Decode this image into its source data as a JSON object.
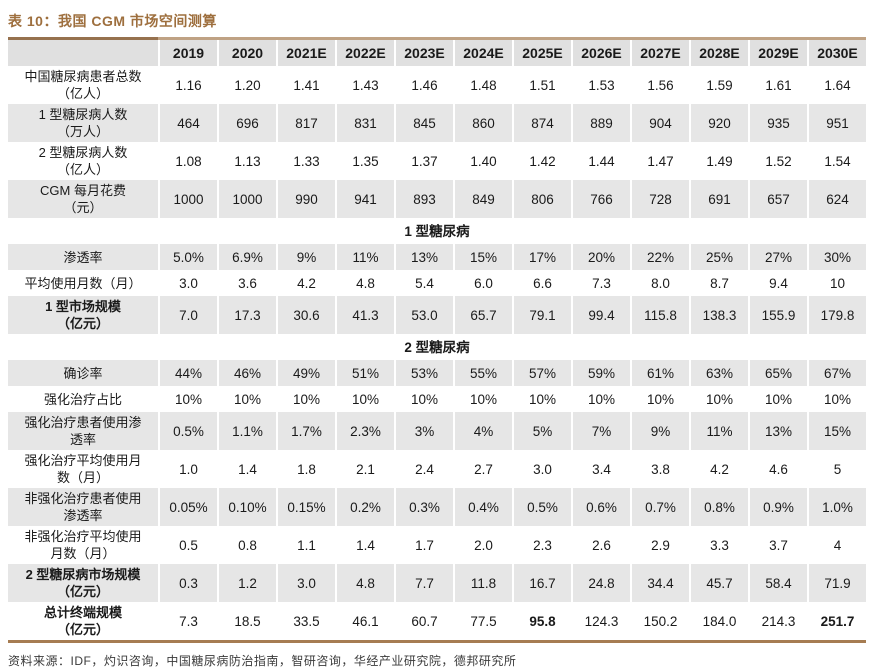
{
  "title": "表 10：我国 CGM 市场空间测算",
  "columns": [
    "2019",
    "2020",
    "2021E",
    "2022E",
    "2023E",
    "2024E",
    "2025E",
    "2026E",
    "2027E",
    "2028E",
    "2029E",
    "2030E"
  ],
  "rows": [
    {
      "type": "data",
      "label": "中国糖尿病患者总数\n（亿人）",
      "bold": false,
      "values": [
        "1.16",
        "1.20",
        "1.41",
        "1.43",
        "1.46",
        "1.48",
        "1.51",
        "1.53",
        "1.56",
        "1.59",
        "1.61",
        "1.64"
      ]
    },
    {
      "type": "data",
      "label": "1 型糖尿病人数\n（万人）",
      "bold": false,
      "values": [
        "464",
        "696",
        "817",
        "831",
        "845",
        "860",
        "874",
        "889",
        "904",
        "920",
        "935",
        "951"
      ]
    },
    {
      "type": "data",
      "label": "2 型糖尿病人数\n（亿人）",
      "bold": false,
      "values": [
        "1.08",
        "1.13",
        "1.33",
        "1.35",
        "1.37",
        "1.40",
        "1.42",
        "1.44",
        "1.47",
        "1.49",
        "1.52",
        "1.54"
      ]
    },
    {
      "type": "data",
      "label": "CGM 每月花费\n（元）",
      "bold": false,
      "values": [
        "1000",
        "1000",
        "990",
        "941",
        "893",
        "849",
        "806",
        "766",
        "728",
        "691",
        "657",
        "624"
      ]
    },
    {
      "type": "section",
      "label": "1 型糖尿病"
    },
    {
      "type": "data",
      "label": "渗透率",
      "bold": false,
      "values": [
        "5.0%",
        "6.9%",
        "9%",
        "11%",
        "13%",
        "15%",
        "17%",
        "20%",
        "22%",
        "25%",
        "27%",
        "30%"
      ]
    },
    {
      "type": "data",
      "label": "平均使用月数（月）",
      "bold": false,
      "values": [
        "3.0",
        "3.6",
        "4.2",
        "4.8",
        "5.4",
        "6.0",
        "6.6",
        "7.3",
        "8.0",
        "8.7",
        "9.4",
        "10"
      ]
    },
    {
      "type": "data",
      "label": "1 型市场规模\n（亿元）",
      "bold": true,
      "values": [
        "7.0",
        "17.3",
        "30.6",
        "41.3",
        "53.0",
        "65.7",
        "79.1",
        "99.4",
        "115.8",
        "138.3",
        "155.9",
        "179.8"
      ]
    },
    {
      "type": "section",
      "label": "2 型糖尿病"
    },
    {
      "type": "data",
      "label": "确诊率",
      "bold": false,
      "values": [
        "44%",
        "46%",
        "49%",
        "51%",
        "53%",
        "55%",
        "57%",
        "59%",
        "61%",
        "63%",
        "65%",
        "67%"
      ]
    },
    {
      "type": "data",
      "label": "强化治疗占比",
      "bold": false,
      "values": [
        "10%",
        "10%",
        "10%",
        "10%",
        "10%",
        "10%",
        "10%",
        "10%",
        "10%",
        "10%",
        "10%",
        "10%"
      ]
    },
    {
      "type": "data",
      "label": "强化治疗患者使用渗\n透率",
      "bold": false,
      "values": [
        "0.5%",
        "1.1%",
        "1.7%",
        "2.3%",
        "3%",
        "4%",
        "5%",
        "7%",
        "9%",
        "11%",
        "13%",
        "15%"
      ]
    },
    {
      "type": "data",
      "label": "强化治疗平均使用月\n数（月）",
      "bold": false,
      "values": [
        "1.0",
        "1.4",
        "1.8",
        "2.1",
        "2.4",
        "2.7",
        "3.0",
        "3.4",
        "3.8",
        "4.2",
        "4.6",
        "5"
      ]
    },
    {
      "type": "data",
      "label": "非强化治疗患者使用\n渗透率",
      "bold": false,
      "values": [
        "0.05%",
        "0.10%",
        "0.15%",
        "0.2%",
        "0.3%",
        "0.4%",
        "0.5%",
        "0.6%",
        "0.7%",
        "0.8%",
        "0.9%",
        "1.0%"
      ]
    },
    {
      "type": "data",
      "label": "非强化治疗平均使用\n月数（月）",
      "bold": false,
      "values": [
        "0.5",
        "0.8",
        "1.1",
        "1.4",
        "1.7",
        "2.0",
        "2.3",
        "2.6",
        "2.9",
        "3.3",
        "3.7",
        "4"
      ]
    },
    {
      "type": "data",
      "label": "2 型糖尿病市场规模\n（亿元）",
      "bold": true,
      "values": [
        "0.3",
        "1.2",
        "3.0",
        "4.8",
        "7.7",
        "11.8",
        "16.7",
        "24.8",
        "34.4",
        "45.7",
        "58.4",
        "71.9"
      ]
    },
    {
      "type": "data",
      "label": "总计终端规模\n（亿元）",
      "bold": true,
      "values": [
        "7.3",
        "18.5",
        "33.5",
        "46.1",
        "60.7",
        "77.5",
        "95.8",
        "124.3",
        "150.2",
        "184.0",
        "214.3",
        "251.7"
      ],
      "bold_values": [
        6,
        11
      ]
    }
  ],
  "footer": "资料来源：IDF，灼识咨询，中国糖尿病防治指南，智研咨询，华经产业研究院，德邦研究所",
  "colors": {
    "title": "#9e6f3e",
    "rule_top_dark": "#96714e",
    "rule_top_light": "#bfa284",
    "rule_bottom": "#a67c52",
    "row_shade": "#e6e6e6",
    "header_shade": "#e0e0e0"
  }
}
